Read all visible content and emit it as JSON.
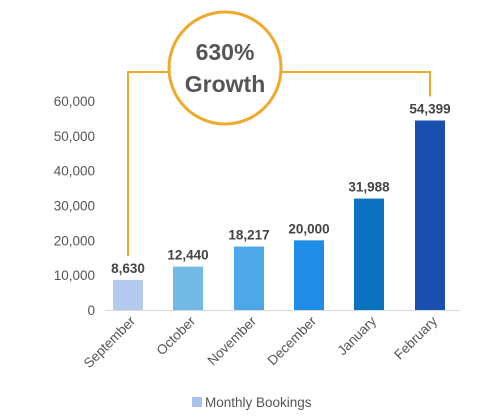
{
  "chart_data": {
    "type": "bar",
    "categories": [
      "September",
      "October",
      "November",
      "December",
      "January",
      "February"
    ],
    "series": [
      {
        "name": "Monthly Bookings",
        "values": [
          8630,
          12440,
          18217,
          20000,
          31988,
          54399
        ]
      }
    ],
    "data_labels": [
      "8,630",
      "12,440",
      "18,217",
      "20,000",
      "31,988",
      "54,399"
    ],
    "y_ticks": [
      "0",
      "10,000",
      "20,000",
      "30,000",
      "40,000",
      "50,000",
      "60,000"
    ],
    "ylim": [
      0,
      60000
    ],
    "grid": false,
    "legend": {
      "placement": "bottom-center",
      "label": "Monthly Bookings",
      "swatch_color": "#a9c4ec"
    },
    "bar_colors": [
      "#b3c9ee",
      "#72b9e6",
      "#4da7e9",
      "#1f8ce6",
      "#0b72c0",
      "#1a4fb0"
    ],
    "annotation": {
      "line1": "630%",
      "line2": "Growth",
      "circle_color": "#f0a92a",
      "text_color": "#555555"
    },
    "title": "",
    "xlabel": "",
    "ylabel": ""
  }
}
